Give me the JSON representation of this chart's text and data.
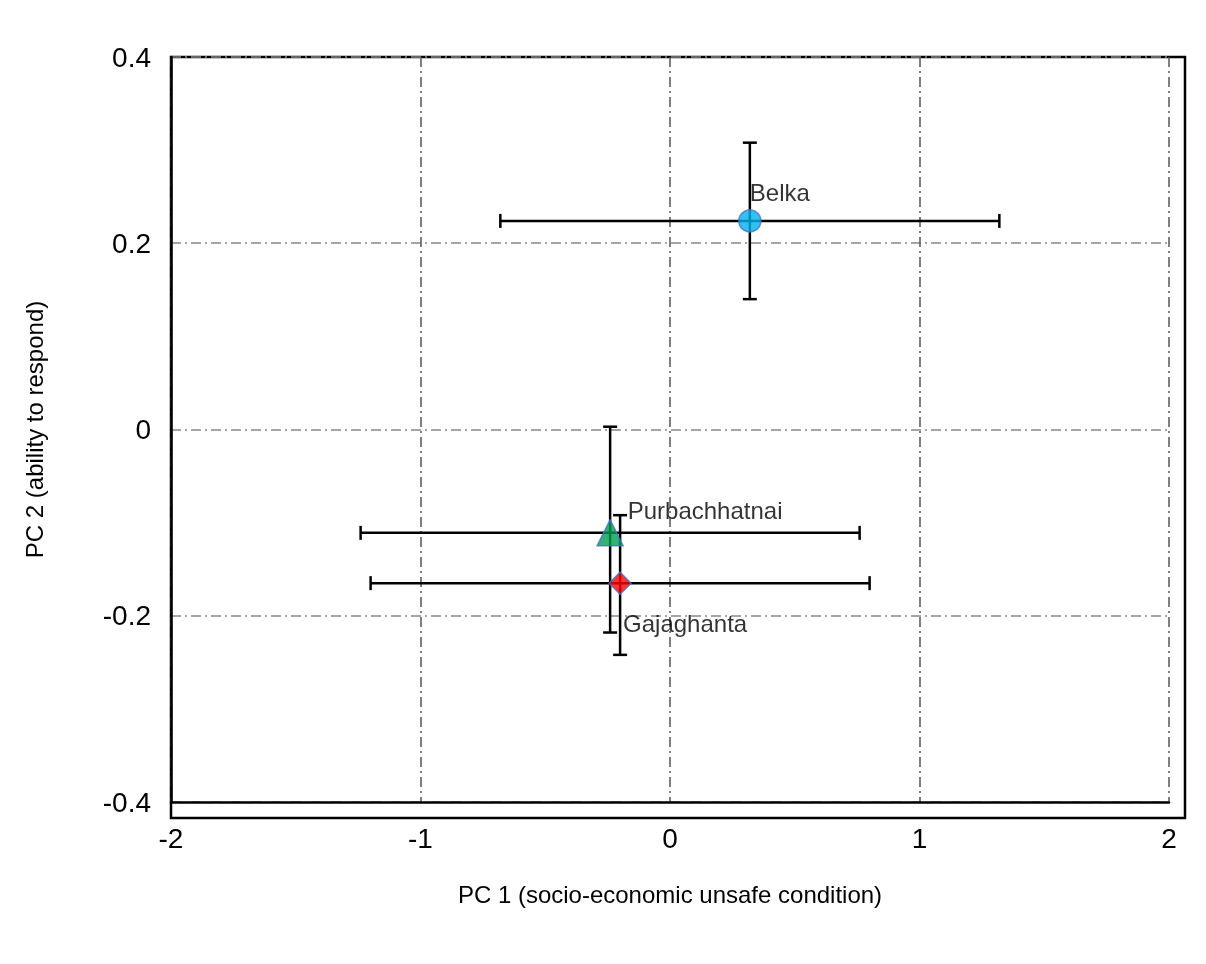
{
  "chart_data": {
    "type": "scatter",
    "xlabel": "PC 1 (socio-economic unsafe condition)",
    "ylabel": "PC 2 (ability to respond)",
    "xlim": [
      -2,
      2
    ],
    "xticks": [
      -2,
      -1,
      0,
      1,
      2
    ],
    "ylim": [
      -0.4,
      0.4
    ],
    "yticks": [
      -0.4,
      -0.2,
      0,
      0.2,
      0.4
    ],
    "grid": true,
    "legend": false,
    "series": [
      {
        "name": "Belka",
        "color": "#00b0f0",
        "marker": "circle",
        "x": [
          0.32
        ],
        "values": [
          0.224
        ],
        "xerrors": [
          [
            -0.68,
            1.32
          ]
        ],
        "errors": [
          [
            0.14,
            0.308
          ]
        ]
      },
      {
        "name": "Purbachhatnai",
        "color": "#00a050",
        "marker": "triangle",
        "x": [
          -0.24
        ],
        "values": [
          -0.111
        ],
        "xerrors": [
          [
            -1.24,
            0.76
          ]
        ],
        "errors": [
          [
            -0.218,
            0.003
          ]
        ]
      },
      {
        "name": "Gajaghanta",
        "color": "#ff0000",
        "marker": "diamond",
        "x": [
          -0.2
        ],
        "values": [
          -0.165
        ],
        "xerrors": [
          [
            -1.2,
            0.8
          ]
        ],
        "errors": [
          [
            -0.242,
            -0.092
          ]
        ]
      }
    ]
  }
}
